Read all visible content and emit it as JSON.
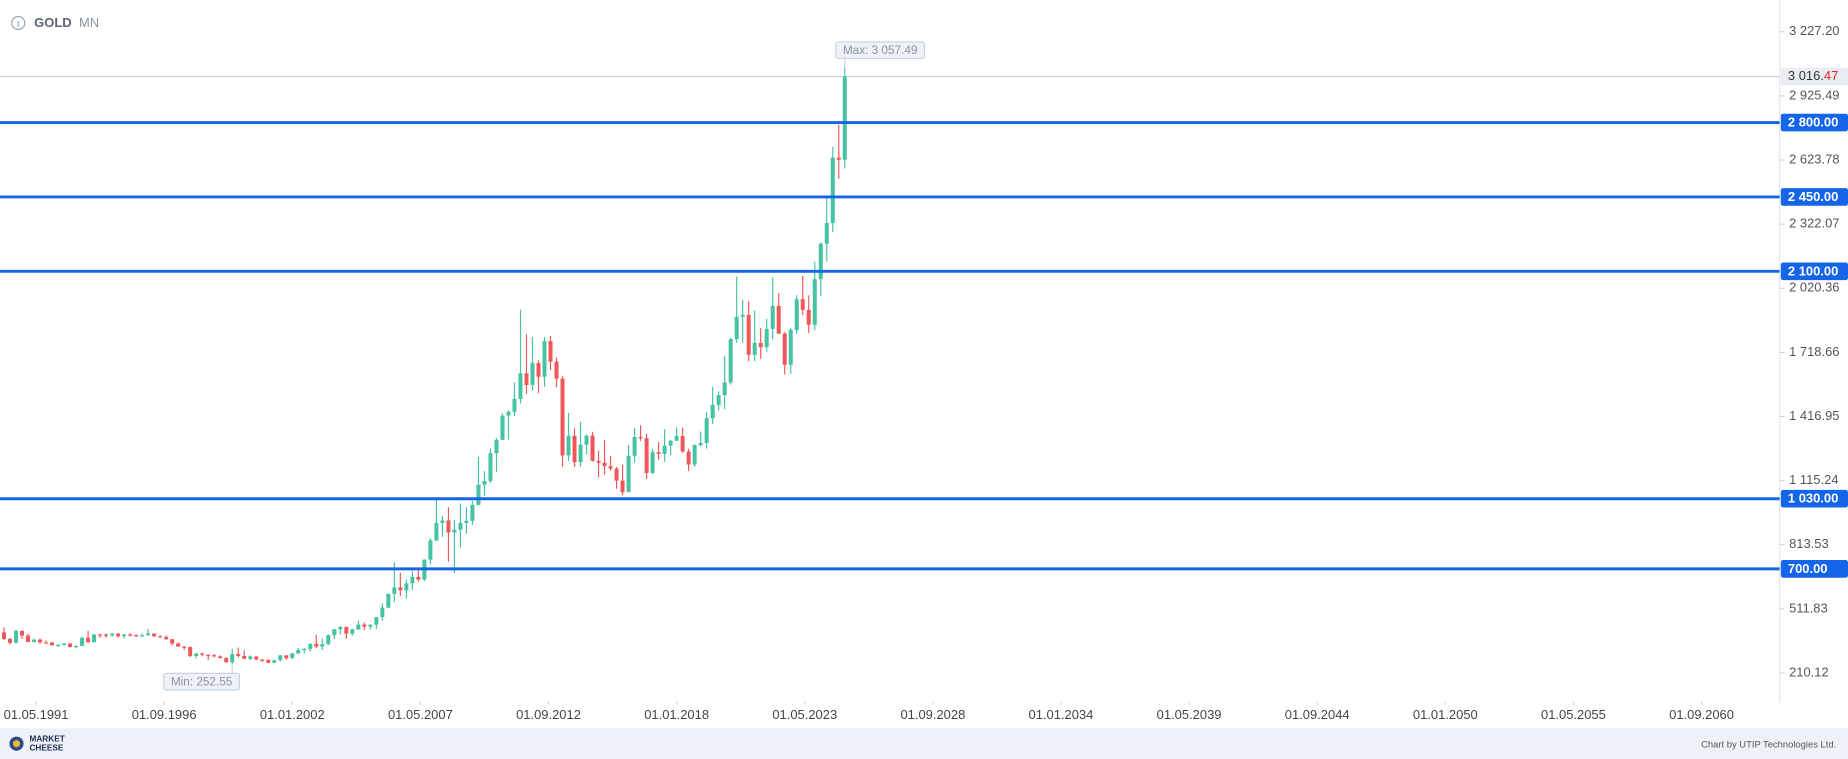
{
  "chart_data": {
    "type": "candlestick",
    "title": "GOLD",
    "subtitle": "MN",
    "x": [
      "01.01.1990",
      "01.04.1990",
      "01.07.1990",
      "01.10.1990",
      "01.01.1991",
      "01.04.1991",
      "01.07.1991",
      "01.10.1991",
      "01.01.1992",
      "01.04.1992",
      "01.07.1992",
      "01.10.1992",
      "01.01.1993",
      "01.04.1993",
      "01.07.1993",
      "01.10.1993",
      "01.01.1994",
      "01.04.1994",
      "01.07.1994",
      "01.10.1994",
      "01.01.1995",
      "01.04.1995",
      "01.07.1995",
      "01.10.1995",
      "01.01.1996",
      "01.04.1996",
      "01.07.1996",
      "01.10.1996",
      "01.01.1997",
      "01.04.1997",
      "01.07.1997",
      "01.10.1997",
      "01.01.1998",
      "01.04.1998",
      "01.07.1998",
      "01.10.1998",
      "01.01.1999",
      "01.04.1999",
      "01.07.1999",
      "01.10.1999",
      "01.01.2000",
      "01.04.2000",
      "01.07.2000",
      "01.10.2000",
      "01.01.2001",
      "01.04.2001",
      "01.07.2001",
      "01.10.2001",
      "01.01.2002",
      "01.04.2002",
      "01.07.2002",
      "01.10.2002",
      "01.01.2003",
      "01.04.2003",
      "01.07.2003",
      "01.10.2003",
      "01.01.2004",
      "01.04.2004",
      "01.07.2004",
      "01.10.2004",
      "01.01.2005",
      "01.04.2005",
      "01.07.2005",
      "01.10.2005",
      "01.01.2006",
      "01.04.2006",
      "01.07.2006",
      "01.10.2006",
      "01.01.2007",
      "01.04.2007",
      "01.07.2007",
      "01.10.2007",
      "01.01.2008",
      "01.04.2008",
      "01.07.2008",
      "01.10.2008",
      "01.01.2009",
      "01.04.2009",
      "01.07.2009",
      "01.10.2009",
      "01.01.2010",
      "01.04.2010",
      "01.07.2010",
      "01.10.2010",
      "01.01.2011",
      "01.04.2011",
      "01.07.2011",
      "01.10.2011",
      "01.01.2012",
      "01.04.2012",
      "01.07.2012",
      "01.10.2012",
      "01.01.2013",
      "01.04.2013",
      "01.07.2013",
      "01.10.2013",
      "01.01.2014",
      "01.04.2014",
      "01.07.2014",
      "01.10.2014",
      "01.01.2015",
      "01.04.2015",
      "01.07.2015",
      "01.10.2015",
      "01.01.2016",
      "01.04.2016",
      "01.07.2016",
      "01.10.2016",
      "01.01.2017",
      "01.04.2017",
      "01.07.2017",
      "01.10.2017",
      "01.01.2018",
      "01.04.2018",
      "01.07.2018",
      "01.10.2018",
      "01.01.2019",
      "01.04.2019",
      "01.07.2019",
      "01.10.2019",
      "01.01.2020",
      "01.04.2020",
      "01.07.2020",
      "01.10.2020",
      "01.01.2021",
      "01.04.2021",
      "01.07.2021",
      "01.10.2021",
      "01.01.2022",
      "01.04.2022",
      "01.07.2022",
      "01.10.2022",
      "01.01.2023",
      "01.04.2023",
      "01.07.2023",
      "01.10.2023",
      "01.01.2024",
      "01.04.2024",
      "01.07.2024",
      "01.10.2024",
      "01.01.2025"
    ],
    "open": [
      401,
      370,
      352,
      408,
      386,
      356,
      367,
      354,
      353,
      341,
      343,
      349,
      333,
      337,
      376,
      355,
      391,
      390,
      387,
      395,
      383,
      391,
      388,
      384,
      387,
      396,
      382,
      379,
      369,
      349,
      334,
      332,
      290,
      301,
      296,
      294,
      288,
      280,
      261,
      299,
      290,
      277,
      288,
      273,
      272,
      258,
      270,
      293,
      279,
      302,
      318,
      323,
      347,
      334,
      346,
      388,
      416,
      427,
      395,
      415,
      438,
      428,
      437,
      473,
      517,
      582,
      613,
      599,
      632,
      662,
      650,
      743,
      834,
      916,
      928,
      871,
      884,
      916,
      926,
      1001,
      1096,
      1113,
      1244,
      1307,
      1421,
      1439,
      1500,
      1620,
      1565,
      1668,
      1604,
      1772,
      1675,
      1595,
      1234,
      1326,
      1202,
      1284,
      1327,
      1208,
      1199,
      1183,
      1172,
      1115,
      1061,
      1232,
      1320,
      1315,
      1151,
      1249,
      1241,
      1280,
      1303,
      1325,
      1252,
      1191,
      1282,
      1292,
      1409,
      1472,
      1517,
      1577,
      1781,
      1886,
      1895,
      1707,
      1763,
      1743,
      1829,
      1937,
      1807,
      1660,
      1824,
      1969,
      1919,
      1849,
      2063,
      2230,
      2327,
      2635,
      2625
    ],
    "high": [
      425,
      375,
      415,
      410,
      395,
      372,
      372,
      363,
      358,
      344,
      350,
      350,
      338,
      381,
      408,
      395,
      394,
      396,
      399,
      398,
      393,
      397,
      392,
      396,
      418,
      396,
      390,
      387,
      370,
      353,
      337,
      335,
      305,
      306,
      298,
      299,
      293,
      285,
      325,
      330,
      317,
      293,
      288,
      276,
      274,
      274,
      294,
      294,
      305,
      329,
      327,
      350,
      390,
      373,
      391,
      417,
      430,
      428,
      418,
      456,
      447,
      440,
      474,
      538,
      584,
      730,
      682,
      650,
      690,
      695,
      745,
      845,
      1032,
      950,
      990,
      930,
      1007,
      990,
      1020,
      1226,
      1160,
      1266,
      1315,
      1431,
      1447,
      1577,
      1920,
      1803,
      1791,
      1681,
      1791,
      1796,
      1694,
      1607,
      1434,
      1362,
      1392,
      1332,
      1345,
      1255,
      1307,
      1232,
      1180,
      1191,
      1283,
      1362,
      1375,
      1337,
      1264,
      1296,
      1357,
      1306,
      1366,
      1365,
      1265,
      1287,
      1346,
      1439,
      1557,
      1535,
      1703,
      1788,
      2075,
      1965,
      1959,
      1916,
      1834,
      1877,
      2070,
      1998,
      1814,
      1834,
      1988,
      2079,
      1987,
      2146,
      2236,
      2450,
      2686,
      2790,
      3057.49
    ],
    "low": [
      365,
      345,
      350,
      370,
      354,
      354,
      346,
      351,
      337,
      332,
      338,
      329,
      326,
      336,
      350,
      354,
      375,
      375,
      380,
      375,
      372,
      382,
      380,
      381,
      386,
      380,
      378,
      366,
      338,
      335,
      318,
      284,
      278,
      288,
      270,
      285,
      279,
      256,
      252.55,
      284,
      275,
      269,
      270,
      263,
      255,
      256,
      265,
      272,
      277,
      300,
      302,
      311,
      327,
      319,
      341,
      370,
      390,
      372,
      385,
      413,
      411,
      414,
      418,
      456,
      516,
      543,
      572,
      560,
      600,
      640,
      642,
      720,
      830,
      850,
      735,
      680,
      800,
      865,
      907,
      998,
      1044,
      1105,
      1157,
      1305,
      1308,
      1420,
      1478,
      1523,
      1538,
      1527,
      1556,
      1635,
      1555,
      1180,
      1208,
      1180,
      1182,
      1240,
      1205,
      1131,
      1142,
      1162,
      1077,
      1046,
      1061,
      1200,
      1302,
      1123,
      1146,
      1214,
      1204,
      1236,
      1303,
      1246,
      1160,
      1180,
      1276,
      1266,
      1381,
      1445,
      1451,
      1567,
      1764,
      1764,
      1677,
      1677,
      1687,
      1722,
      1780,
      1805,
      1615,
      1618,
      1805,
      1893,
      1810,
      1823,
      1984,
      2146,
      2286,
      2536,
      2584
    ],
    "close": [
      370,
      352,
      408,
      386,
      356,
      367,
      354,
      353,
      341,
      343,
      349,
      333,
      337,
      376,
      355,
      391,
      390,
      387,
      395,
      383,
      391,
      388,
      384,
      387,
      396,
      382,
      379,
      369,
      349,
      334,
      332,
      290,
      301,
      296,
      294,
      288,
      280,
      261,
      299,
      290,
      277,
      288,
      273,
      272,
      258,
      270,
      293,
      279,
      302,
      318,
      323,
      347,
      334,
      346,
      388,
      416,
      427,
      395,
      415,
      438,
      428,
      437,
      473,
      517,
      582,
      613,
      599,
      632,
      662,
      650,
      743,
      834,
      916,
      928,
      871,
      884,
      916,
      926,
      1001,
      1096,
      1113,
      1244,
      1307,
      1421,
      1439,
      1500,
      1620,
      1565,
      1668,
      1604,
      1772,
      1675,
      1595,
      1234,
      1326,
      1202,
      1284,
      1327,
      1208,
      1199,
      1183,
      1172,
      1115,
      1061,
      1232,
      1320,
      1315,
      1151,
      1249,
      1241,
      1280,
      1303,
      1325,
      1252,
      1191,
      1282,
      1292,
      1409,
      1472,
      1517,
      1577,
      1781,
      1886,
      1895,
      1707,
      1763,
      1743,
      1829,
      1937,
      1807,
      1660,
      1824,
      1969,
      1919,
      1849,
      2063,
      2230,
      2327,
      2635,
      2625,
      3016.47
    ],
    "up_color": "#45c3a3",
    "down_color": "#f0575b",
    "xlim": [
      "01.11.1989",
      "01.12.2063"
    ],
    "xticks": [
      "01.05.1991",
      "01.09.1996",
      "01.01.2002",
      "01.05.2007",
      "01.09.2012",
      "01.01.2018",
      "01.05.2023",
      "01.09.2028",
      "01.01.2034",
      "01.05.2039",
      "01.09.2044",
      "01.01.2050",
      "01.05.2055",
      "01.09.2060"
    ],
    "ylim": [
      77,
      3349
    ],
    "yticks": [
      {
        "value": 3227.2,
        "label": "3 227.20"
      },
      {
        "value": 2925.49,
        "label": "2 925.49"
      },
      {
        "value": 2623.78,
        "label": "2 623.78"
      },
      {
        "value": 2322.07,
        "label": "2 322.07"
      },
      {
        "value": 2020.36,
        "label": "2 020.36"
      },
      {
        "value": 1718.66,
        "label": "1 718.66"
      },
      {
        "value": 1416.95,
        "label": "1 416.95"
      },
      {
        "value": 1115.24,
        "label": "1 115.24"
      },
      {
        "value": 813.53,
        "label": "813.53"
      },
      {
        "value": 511.83,
        "label": "511.83"
      },
      {
        "value": 210.12,
        "label": "210.12"
      }
    ],
    "levels": [
      {
        "value": 2800,
        "label": "2 800.00"
      },
      {
        "value": 2450,
        "label": "2 450.00"
      },
      {
        "value": 2100,
        "label": "2 100.00"
      },
      {
        "value": 1030,
        "label": "1 030.00"
      },
      {
        "value": 700,
        "label": "700.00"
      }
    ],
    "level_color": "#1565e8",
    "last_price": {
      "value": 3016.47,
      "label": "3 016.47"
    },
    "max": {
      "x": "01.01.2025",
      "value": 3057.49,
      "label": "Max: 3 057.49"
    },
    "min": {
      "x": "01.07.1999",
      "value": 252.55,
      "label": "Min: 252.55"
    }
  },
  "footer": {
    "brand": [
      "MARKET",
      "CHEESE"
    ],
    "credit": "Chart by UTIP Technologies Ltd."
  }
}
